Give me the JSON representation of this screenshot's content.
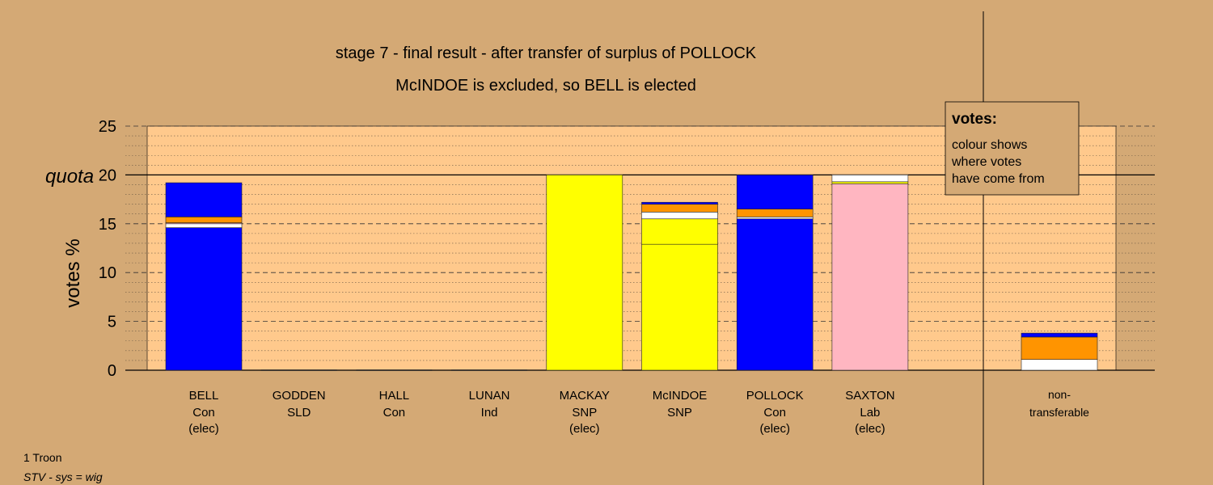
{
  "chart_data": {
    "type": "bar",
    "stacked": true,
    "title": "stage 7 - final result - after transfer of surplus of POLLOCK",
    "subtitle": "McINDOE is excluded, so BELL is elected",
    "ylabel": "votes %",
    "ylim": [
      0,
      25
    ],
    "yticks": [
      0,
      5,
      10,
      15,
      20,
      25
    ],
    "quota": 20,
    "quota_label": "quota",
    "grid": true,
    "legend": {
      "title": "votes:",
      "lines": [
        "colour shows",
        "where votes",
        "have come from"
      ],
      "placement": "top-right"
    },
    "candidates": [
      {
        "name": "BELL",
        "party": "Con",
        "status": "(elec)",
        "segments": [
          {
            "color": "#0000FF",
            "value": 14.6
          },
          {
            "color": "#FFFFFF",
            "value": 0.4
          },
          {
            "color": "#FFB6C1",
            "value": 0.1
          },
          {
            "color": "#FF9400",
            "value": 0.6
          },
          {
            "color": "#0000FF",
            "value": 3.5
          }
        ]
      },
      {
        "name": "GODDEN",
        "party": "SLD",
        "status": "",
        "segments": []
      },
      {
        "name": "HALL",
        "party": "Con",
        "status": "",
        "segments": []
      },
      {
        "name": "LUNAN",
        "party": "Ind",
        "status": "",
        "segments": []
      },
      {
        "name": "MACKAY",
        "party": "SNP",
        "status": "(elec)",
        "segments": [
          {
            "color": "#FFFF00",
            "value": 20.0
          }
        ]
      },
      {
        "name": "McINDOE",
        "party": "SNP",
        "status": "",
        "segments": [
          {
            "color": "#FFFF00",
            "value": 12.9
          },
          {
            "color": "#FFFF00",
            "value": 2.6
          },
          {
            "color": "#FFFFFF",
            "value": 0.7
          },
          {
            "color": "#FF9400",
            "value": 0.8
          },
          {
            "color": "#0000FF",
            "value": 0.2
          }
        ]
      },
      {
        "name": "POLLOCK",
        "party": "Con",
        "status": "(elec)",
        "segments": [
          {
            "color": "#0000FF",
            "value": 15.5
          },
          {
            "color": "#FFFFFF",
            "value": 0.2
          },
          {
            "color": "#FF9400",
            "value": 0.8
          },
          {
            "color": "#0000FF",
            "value": 3.5
          }
        ]
      },
      {
        "name": "SAXTON",
        "party": "Lab",
        "status": "(elec)",
        "segments": [
          {
            "color": "#FFB6C1",
            "value": 19.1
          },
          {
            "color": "#FFFF00",
            "value": 0.2
          },
          {
            "color": "#FFFFFF",
            "value": 0.7
          }
        ]
      }
    ],
    "non_transferable": {
      "label_line1": "non-",
      "label_line2": "transferable",
      "segments": [
        {
          "color": "#FFFFFF",
          "value": 1.1
        },
        {
          "color": "#FF9400",
          "value": 2.3
        },
        {
          "color": "#0000FF",
          "value": 0.4
        }
      ]
    }
  },
  "footer": {
    "line1": "1 Troon",
    "line2": "STV - sys = wig"
  },
  "colors": {
    "background": "#D4A975",
    "plot_area": "#FFC98C"
  }
}
